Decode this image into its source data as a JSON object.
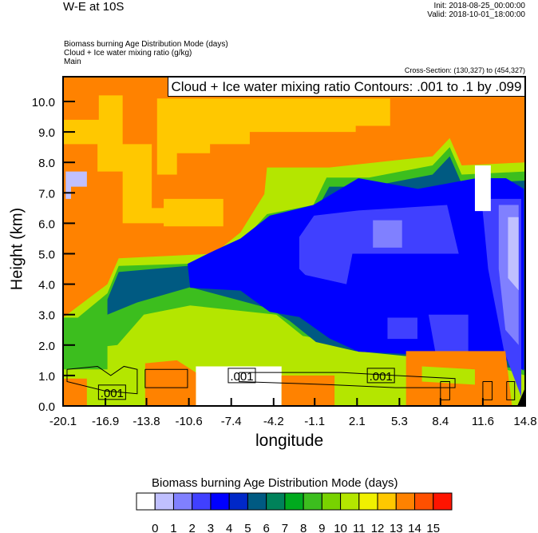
{
  "header": {
    "title": "W-E at 10S",
    "init": "Init: 2018-08-25_00:00:00",
    "valid": "Valid: 2018-10-01_18:00:00",
    "subtitles": [
      "Biomass burning Age Distribution Mode   (days)",
      "Cloud + Ice water mixing ratio   (g/kg)",
      "Main"
    ],
    "cross_section": "Cross-Section: (130,327) to (454,327)"
  },
  "chart_data": {
    "type": "heatmap",
    "title": "Biomass burning Age Distribution Mode  (days)",
    "contour_legend": "Cloud + Ice water mixing ratio Contours: .001 to .1 by .099",
    "xlabel": "longitude",
    "ylabel": "Height (km)",
    "xlim": [
      -20.1,
      14.8
    ],
    "ylim": [
      0,
      10.8
    ],
    "xticks": [
      "-20.1",
      "-16.9",
      "-13.8",
      "-10.6",
      "-7.4",
      "-4.2",
      "-1.1",
      "2.1",
      "5.3",
      "8.4",
      "11.6",
      "14.8"
    ],
    "yticks": [
      "0.0",
      "1.0",
      "2.0",
      "3.0",
      "4.0",
      "5.0",
      "6.0",
      "7.0",
      "8.0",
      "9.0",
      "10.0"
    ],
    "colorbar": {
      "labels": [
        "0",
        "1",
        "2",
        "3",
        "4",
        "5",
        "6",
        "7",
        "8",
        "9",
        "10",
        "11",
        "12",
        "13",
        "14",
        "15"
      ],
      "colors": [
        "#ffffff",
        "#c0c0ff",
        "#8080ff",
        "#4040ff",
        "#0000ff",
        "#0028c8",
        "#005a82",
        "#00825a",
        "#00aa1e",
        "#3cbe1e",
        "#78d200",
        "#b4e600",
        "#f0f000",
        "#ffc800",
        "#ff8200",
        "#ff5000",
        "#ff1400"
      ]
    },
    "regions": [
      {
        "level": 14,
        "points": [
          [
            -20.1,
            0
          ],
          [
            14.8,
            0
          ],
          [
            14.8,
            10.8
          ],
          [
            -20.1,
            10.8
          ]
        ]
      },
      {
        "level": 13,
        "points": [
          [
            -20.1,
            9.4
          ],
          [
            -17.4,
            9.4
          ],
          [
            -17.4,
            10.2
          ],
          [
            -15.6,
            10.2
          ],
          [
            -15.6,
            8.6
          ],
          [
            -13.4,
            8.6
          ],
          [
            -13.4,
            6.5
          ],
          [
            -11.5,
            6.5
          ],
          [
            -11.5,
            6.0
          ],
          [
            -15.6,
            6.0
          ],
          [
            -15.6,
            7.7
          ],
          [
            -17.5,
            7.7
          ],
          [
            -17.5,
            8.6
          ],
          [
            -20.1,
            8.6
          ]
        ]
      },
      {
        "level": 13,
        "points": [
          [
            -13,
            10.1
          ],
          [
            4.6,
            10.1
          ],
          [
            4.6,
            9.2
          ],
          [
            2,
            9.2
          ],
          [
            2,
            9.0
          ],
          [
            -6,
            9.0
          ],
          [
            -6,
            8.6
          ],
          [
            -9,
            8.6
          ],
          [
            -9,
            8.3
          ],
          [
            -11.5,
            8.3
          ],
          [
            -11.5,
            7.6
          ],
          [
            -13,
            7.6
          ]
        ]
      },
      {
        "level": 13,
        "points": [
          [
            -12.5,
            6.8
          ],
          [
            -8,
            6.8
          ],
          [
            -8,
            5.9
          ],
          [
            -12.5,
            5.9
          ]
        ]
      },
      {
        "level": 11,
        "points": [
          [
            -20.1,
            2.9
          ],
          [
            -16.75,
            4.0
          ],
          [
            -15.9,
            4.85
          ],
          [
            -8.7,
            5.0
          ],
          [
            -6.7,
            5.7
          ],
          [
            -4.9,
            6.96
          ],
          [
            -4.7,
            7.83
          ],
          [
            0,
            7.83
          ],
          [
            7.8,
            8.2
          ],
          [
            9.1,
            8.8
          ],
          [
            10,
            7.9
          ],
          [
            14.8,
            8.0
          ],
          [
            14.8,
            0
          ],
          [
            -20.1,
            0
          ]
        ]
      },
      {
        "level": 9,
        "points": [
          [
            -20.1,
            2.5
          ],
          [
            -16.75,
            3.7
          ],
          [
            -15.9,
            4.6
          ],
          [
            -8.5,
            4.7
          ],
          [
            -6.6,
            5.4
          ],
          [
            -4.7,
            6.3
          ],
          [
            -1.2,
            6.6
          ],
          [
            -0.2,
            7.5
          ],
          [
            3,
            7.5
          ],
          [
            7.8,
            7.9
          ],
          [
            9.1,
            8.5
          ],
          [
            10,
            7.6
          ],
          [
            14.8,
            7.7
          ],
          [
            14.8,
            1.0
          ],
          [
            9,
            1.8
          ],
          [
            2,
            2.0
          ],
          [
            -2,
            2.3
          ],
          [
            -4,
            3.0
          ],
          [
            -10.5,
            3.3
          ],
          [
            -14,
            3.0
          ],
          [
            -16,
            2.0
          ],
          [
            -20.1,
            1.8
          ]
        ]
      },
      {
        "level": 9,
        "points": [
          [
            -20.1,
            2.9
          ],
          [
            -16.75,
            2.9
          ],
          [
            -16.75,
            1.2
          ],
          [
            -20.1,
            1.2
          ]
        ]
      },
      {
        "level": 6,
        "points": [
          [
            -16.75,
            3.5
          ],
          [
            -15.9,
            4.4
          ],
          [
            -10.7,
            4.6
          ],
          [
            -8.5,
            4.6
          ],
          [
            -6.6,
            5.2
          ],
          [
            -4.5,
            6.1
          ],
          [
            -1,
            6.4
          ],
          [
            0,
            7.2
          ],
          [
            3,
            7.2
          ],
          [
            7.8,
            7.6
          ],
          [
            9.1,
            8.2
          ],
          [
            10,
            7.3
          ],
          [
            14.8,
            7.4
          ],
          [
            14.8,
            1.2
          ],
          [
            6.7,
            1.6
          ],
          [
            2,
            1.8
          ],
          [
            -1,
            2.1
          ],
          [
            -3,
            2.8
          ],
          [
            -4.5,
            3.2
          ],
          [
            -10.5,
            3.9
          ],
          [
            -14.5,
            3.4
          ],
          [
            -16.75,
            3.0
          ]
        ]
      },
      {
        "level": 4,
        "points": [
          [
            -10.7,
            4.67
          ],
          [
            -8.7,
            5.1
          ],
          [
            -6.7,
            5.5
          ],
          [
            -4.5,
            6.25
          ],
          [
            -1.2,
            6.6
          ],
          [
            2.2,
            7.48
          ],
          [
            6.7,
            7.13
          ],
          [
            11.1,
            7.48
          ],
          [
            13.35,
            7.48
          ],
          [
            14.7,
            7.13
          ],
          [
            14.7,
            1.16
          ],
          [
            13.35,
            1.51
          ],
          [
            6.66,
            1.69
          ],
          [
            2.2,
            1.78
          ],
          [
            0,
            2.22
          ],
          [
            -2.26,
            2.92
          ],
          [
            -4.5,
            3.09
          ],
          [
            -6.7,
            3.79
          ],
          [
            -10.5,
            3.88
          ]
        ]
      },
      {
        "level": 3,
        "points": [
          [
            -2.26,
            5.55
          ],
          [
            -1.15,
            6.25
          ],
          [
            2.2,
            6.42
          ],
          [
            8.9,
            6.6
          ],
          [
            9.78,
            5.0
          ],
          [
            1.75,
            5.0
          ],
          [
            1.3,
            4.0
          ],
          [
            -1.8,
            4.3
          ],
          [
            -2.26,
            4.5
          ]
        ]
      },
      {
        "level": 3,
        "points": [
          [
            4.4,
            2.9
          ],
          [
            6.66,
            2.9
          ],
          [
            6.66,
            2.2
          ],
          [
            4.4,
            2.2
          ]
        ]
      },
      {
        "level": 3,
        "points": [
          [
            7.5,
            3.0
          ],
          [
            10.5,
            3.0
          ],
          [
            10.5,
            1.6
          ],
          [
            8,
            1.8
          ]
        ]
      },
      {
        "level": 3,
        "points": [
          [
            11.5,
            6.8
          ],
          [
            14.5,
            6.8
          ],
          [
            14.5,
            0.3
          ],
          [
            13.2,
            1.8
          ],
          [
            12,
            4.5
          ]
        ]
      },
      {
        "level": 2,
        "points": [
          [
            3.3,
            6.1
          ],
          [
            5.5,
            6.1
          ],
          [
            5.5,
            5.2
          ],
          [
            3.3,
            5.2
          ]
        ]
      },
      {
        "level": 2,
        "points": [
          [
            12.8,
            6.6
          ],
          [
            14.3,
            6.6
          ],
          [
            14.3,
            2.0
          ],
          [
            13.3,
            2.5
          ],
          [
            12.8,
            4.5
          ]
        ]
      },
      {
        "level": 1,
        "points": [
          [
            13.5,
            6.2
          ],
          [
            14.3,
            6.2
          ],
          [
            14.3,
            3.8
          ],
          [
            13.5,
            4.2
          ]
        ]
      },
      {
        "level": 1,
        "points": [
          [
            -19.9,
            7.7
          ],
          [
            -18.3,
            7.7
          ],
          [
            -18.3,
            7.2
          ],
          [
            -19.5,
            7.2
          ],
          [
            -19.5,
            6.8
          ],
          [
            -19.9,
            6.8
          ]
        ]
      },
      {
        "level": 0,
        "points": [
          [
            11.0,
            7.9
          ],
          [
            12.2,
            7.9
          ],
          [
            12.2,
            6.4
          ],
          [
            11.0,
            6.4
          ]
        ]
      },
      {
        "level": 0,
        "points": [
          [
            -10.07,
            1.3
          ],
          [
            -3.6,
            1.3
          ],
          [
            -3.6,
            0
          ],
          [
            -10.07,
            0
          ]
        ]
      },
      {
        "level": 14,
        "points": [
          [
            -20.1,
            0.9
          ],
          [
            -18.3,
            0.9
          ],
          [
            -18.3,
            0
          ],
          [
            -20.1,
            0
          ]
        ]
      },
      {
        "level": 14,
        "points": [
          [
            -13.9,
            1.4
          ],
          [
            -11.5,
            1.5
          ],
          [
            -10.07,
            1.1
          ],
          [
            -10.07,
            0
          ],
          [
            -13.9,
            0
          ]
        ]
      },
      {
        "level": 14,
        "points": [
          [
            -3.6,
            1.0
          ],
          [
            0.4,
            1.0
          ],
          [
            0.4,
            0
          ],
          [
            -3.6,
            0
          ]
        ]
      },
      {
        "level": 14,
        "points": [
          [
            5.8,
            1.8
          ],
          [
            13.3,
            1.8
          ],
          [
            13.8,
            0
          ],
          [
            5.8,
            0
          ]
        ]
      },
      {
        "level": 11,
        "points": [
          [
            7,
            1.3
          ],
          [
            11,
            1.2
          ],
          [
            11,
            0.7
          ],
          [
            7,
            0.8
          ]
        ]
      }
    ],
    "contours": [
      [
        [
          -19.8,
          1.2
        ],
        [
          -17.5,
          1.3
        ],
        [
          -16.5,
          1.0
        ],
        [
          -15.5,
          1.3
        ],
        [
          -14.5,
          1.2
        ],
        [
          -14.5,
          0.4
        ],
        [
          -17,
          0.5
        ],
        [
          -19.8,
          0.8
        ],
        [
          -19.8,
          1.2
        ]
      ],
      [
        [
          -13.9,
          1.2
        ],
        [
          -10.7,
          1.2
        ],
        [
          -10.7,
          0.6
        ],
        [
          -13.9,
          0.6
        ],
        [
          -13.9,
          1.2
        ]
      ],
      [
        [
          -6.8,
          1.1
        ],
        [
          0.9,
          1.1
        ],
        [
          5,
          1.0
        ],
        [
          9.5,
          0.9
        ],
        [
          9.5,
          0.6
        ],
        [
          5,
          0.6
        ],
        [
          0,
          0.7
        ],
        [
          -6.8,
          0.8
        ],
        [
          -6.8,
          1.1
        ]
      ],
      [
        [
          8.4,
          0.8
        ],
        [
          9.1,
          0.8
        ],
        [
          9.1,
          0.2
        ],
        [
          8.4,
          0.2
        ],
        [
          8.4,
          0.8
        ]
      ],
      [
        [
          11.6,
          0.8
        ],
        [
          12.3,
          0.8
        ],
        [
          12.3,
          0.2
        ],
        [
          11.6,
          0.2
        ],
        [
          11.6,
          0.8
        ]
      ],
      [
        [
          13.4,
          0.8
        ],
        [
          14,
          0.8
        ],
        [
          14,
          0.2
        ],
        [
          13.4,
          0.2
        ],
        [
          13.4,
          0.8
        ]
      ]
    ],
    "contour_labels": [
      {
        "text": ".001",
        "x": -16.4,
        "y": 0.45
      },
      {
        "text": ".001",
        "x": -6.6,
        "y": 1.0
      },
      {
        "text": ".001",
        "x": 3.9,
        "y": 1.0
      }
    ]
  }
}
